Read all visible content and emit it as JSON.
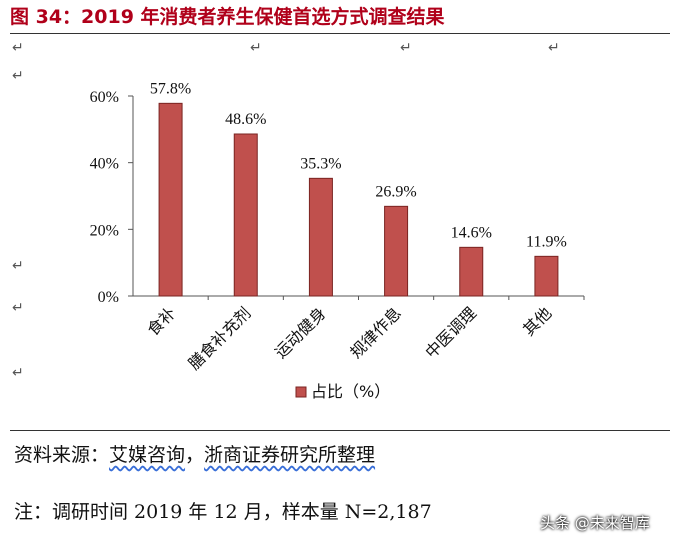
{
  "title": "图 34：2019 年消费者养生保健首选方式调查结果",
  "chart_data": {
    "type": "bar",
    "categories": [
      "食补",
      "膳食补充剂",
      "运动健身",
      "规律作息",
      "中医调理",
      "其他"
    ],
    "values": [
      57.8,
      48.6,
      35.3,
      26.9,
      14.6,
      11.9
    ],
    "value_labels": [
      "57.8%",
      "48.6%",
      "35.3%",
      "26.9%",
      "14.6%",
      "11.9%"
    ],
    "ylim": [
      0,
      60
    ],
    "yticks": [
      "0%",
      "20%",
      "40%",
      "60%"
    ],
    "legend": "占比（%）",
    "legend_position": "bottom",
    "bar_color": "#c0504d"
  },
  "source": {
    "prefix": "资料来源：",
    "org1": "艾媒咨询",
    "sep": "，",
    "org2": "浙商证券研究所整理"
  },
  "note": "注：调研时间 2019 年 12 月，样本量 N=2,187",
  "watermark": "头条 @未来智库"
}
